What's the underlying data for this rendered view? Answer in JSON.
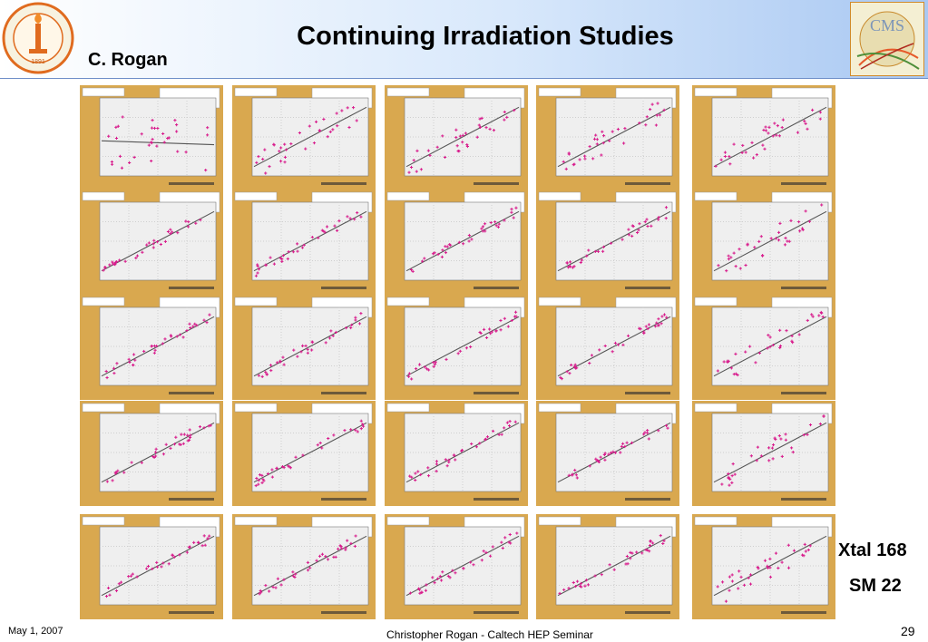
{
  "slide": {
    "title": "Continuing Irradiation Studies",
    "author": "C. Rogan",
    "xtal_label": "Xtal 168",
    "sm_label": "SM 22",
    "footer_date": "May 1, 2007",
    "footer_center": "Christopher Rogan - Caltech HEP Seminar",
    "page_number": "29",
    "logo_left": "Caltech seal logo",
    "logo_right": "CMS logo"
  },
  "colors": {
    "panel_frame": "#d9a84f",
    "plot_bg": "#efefef",
    "points": "#d81b8c",
    "fit_line": "#555555"
  },
  "plots": {
    "rows": [
      [
        {
          "id": "4 0",
          "trend": "flat"
        },
        {
          "id": "4 1",
          "trend": "up"
        },
        {
          "id": "4 2",
          "trend": "up"
        },
        {
          "id": "4 3",
          "trend": "up"
        },
        {
          "id": "4 4",
          "trend": "up"
        }
      ],
      [
        {
          "id": "3 0",
          "trend": "up"
        },
        {
          "id": "3 1",
          "trend": "up"
        },
        {
          "id": "3 2",
          "trend": "up"
        },
        {
          "id": "3 3",
          "trend": "up"
        },
        {
          "id": "3 4",
          "trend": "up"
        }
      ],
      [
        {
          "id": "2 0",
          "trend": "up"
        },
        {
          "id": "2 1",
          "trend": "up"
        },
        {
          "id": "2 2",
          "trend": "up"
        },
        {
          "id": "2 3",
          "trend": "up"
        },
        {
          "id": "2 4",
          "trend": "up"
        }
      ],
      [
        {
          "id": "1 0",
          "trend": "up"
        },
        {
          "id": "1 1",
          "trend": "up"
        },
        {
          "id": "1 2",
          "trend": "up"
        },
        {
          "id": "1 3",
          "trend": "up"
        },
        {
          "id": "1 4",
          "trend": "up"
        }
      ],
      [
        {
          "id": "0 0",
          "trend": "up"
        },
        {
          "id": "0 1",
          "trend": "up"
        },
        {
          "id": "0 2",
          "trend": "up"
        },
        {
          "id": "0 3",
          "trend": "up"
        },
        {
          "id": "0 4",
          "trend": "up"
        }
      ]
    ]
  }
}
